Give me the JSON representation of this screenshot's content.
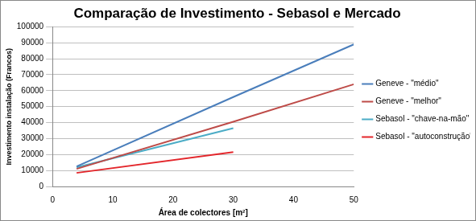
{
  "chart_data": {
    "type": "line",
    "title": "Comparação de Investimento - Sebasol e Mercado",
    "x_label": "Área de colectores [m²]",
    "y_label": "Investimento instalação (Francos)",
    "x": [
      4,
      30,
      50
    ],
    "series": [
      {
        "name": "Geneve - \"médio\"",
        "color": "#4a7ebb",
        "values": [
          12500,
          56000,
          89000
        ]
      },
      {
        "name": "Geneve - \"melhor\"",
        "color": "#be4b48",
        "values": [
          11000,
          40500,
          64000
        ]
      },
      {
        "name": "Sebasol - \"chave-na-mão\"",
        "color": "#4bacc6",
        "values": [
          12000,
          36500,
          null
        ]
      },
      {
        "name": "Sebasol - \"autoconstrução\"",
        "color": "#e3262b",
        "values": [
          8500,
          21500,
          null
        ]
      }
    ],
    "xlim": [
      0,
      50
    ],
    "xticks": [
      0,
      10,
      20,
      30,
      40,
      50
    ],
    "ylim": [
      0,
      100000
    ],
    "yticks": [
      0,
      10000,
      20000,
      30000,
      40000,
      50000,
      60000,
      70000,
      80000,
      90000,
      100000
    ],
    "grid": "y",
    "legend": "right",
    "marker": "none"
  }
}
